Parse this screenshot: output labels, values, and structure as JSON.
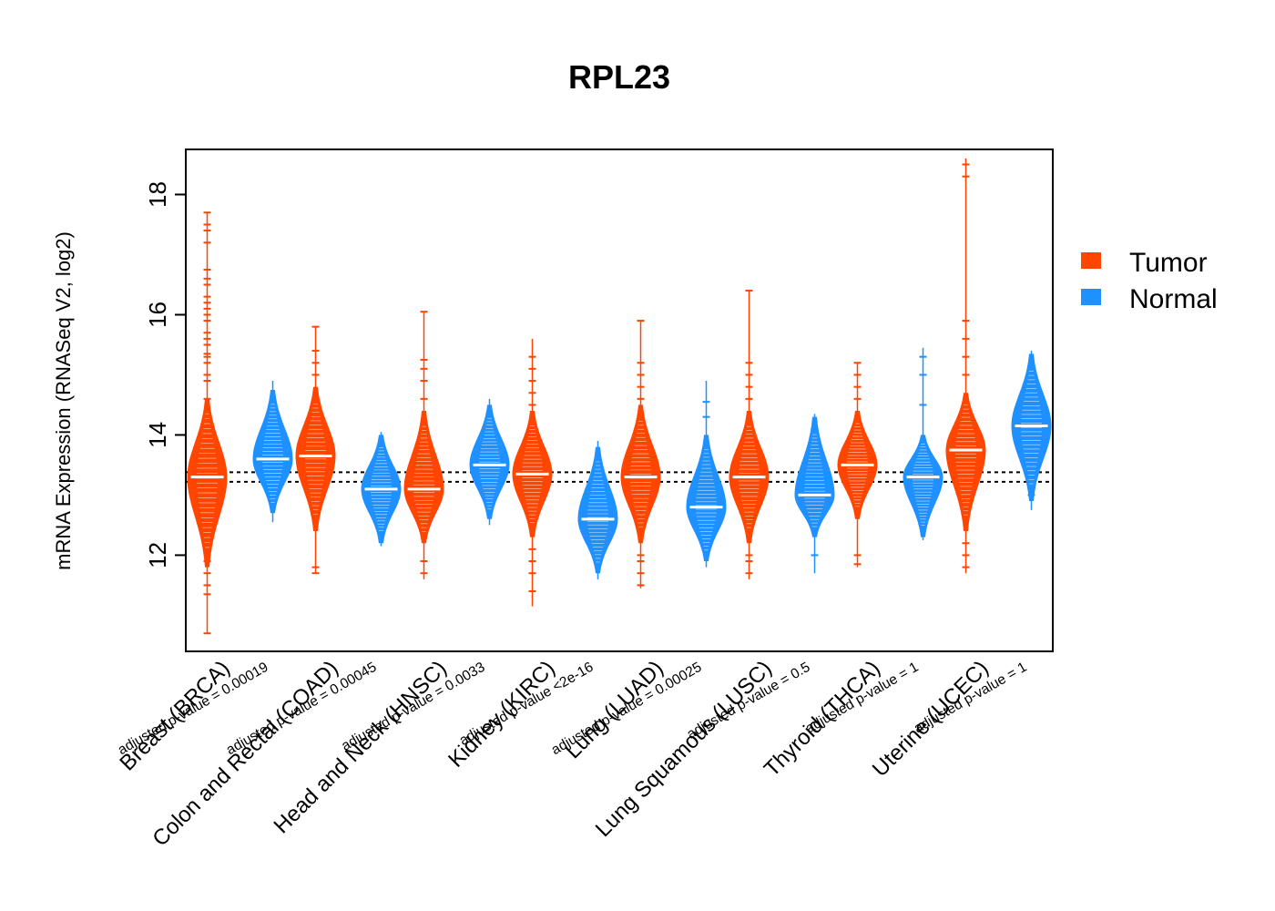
{
  "chart_data": {
    "type": "beanplot",
    "title": "RPL23",
    "xlabel": "",
    "ylabel": "mRNA Expression (RNASeq V2, log2)",
    "ylim": [
      10.4,
      18.75
    ],
    "yticks": [
      12,
      14,
      16,
      18
    ],
    "reference_lines": [
      13.22,
      13.38
    ],
    "legend": {
      "position": "right",
      "items": [
        {
          "name": "Tumor",
          "color": "#FF4500"
        },
        {
          "name": "Normal",
          "color": "#1E90FF"
        }
      ]
    },
    "categories": [
      {
        "label": "Breast (BRCA)",
        "pvalue": "adjusted p-value = 0.00019",
        "tumor": {
          "min": 10.7,
          "max": 17.7,
          "median": 13.3,
          "core_lo": 11.8,
          "core_hi": 14.6,
          "outliers": [
            10.7,
            11.35,
            11.5,
            11.7,
            11.9,
            14.6,
            14.9,
            15.0,
            15.2,
            15.3,
            15.35,
            15.5,
            15.6,
            15.7,
            15.9,
            16.0,
            16.1,
            16.2,
            16.3,
            16.5,
            16.6,
            16.75,
            17.2,
            17.4,
            17.5,
            17.7
          ]
        },
        "normal": {
          "min": 12.55,
          "max": 14.9,
          "median": 13.6,
          "core_lo": 12.7,
          "core_hi": 14.75,
          "outliers": []
        }
      },
      {
        "label": "Colon and Rectal (COAD)",
        "pvalue": "adjusted p-value = 0.00045",
        "tumor": {
          "min": 11.7,
          "max": 15.8,
          "median": 13.65,
          "core_lo": 12.4,
          "core_hi": 14.8,
          "outliers": [
            11.7,
            11.8,
            15.0,
            15.2,
            15.4,
            15.8
          ]
        },
        "normal": {
          "min": 12.15,
          "max": 14.05,
          "median": 13.1,
          "core_lo": 12.2,
          "core_hi": 14.0,
          "outliers": []
        }
      },
      {
        "label": "Head and Neck (HNSC)",
        "pvalue": "adjusted p-value = 0.0033",
        "tumor": {
          "min": 11.6,
          "max": 16.05,
          "median": 13.1,
          "core_lo": 12.2,
          "core_hi": 14.4,
          "outliers": [
            11.7,
            11.9,
            14.6,
            14.9,
            15.1,
            15.25,
            16.05
          ]
        },
        "normal": {
          "min": 12.5,
          "max": 14.6,
          "median": 13.5,
          "core_lo": 12.6,
          "core_hi": 14.5,
          "outliers": []
        }
      },
      {
        "label": "Kidney (KIRC)",
        "pvalue": "adjusted p-value <2e-16",
        "tumor": {
          "min": 11.15,
          "max": 15.6,
          "median": 13.35,
          "core_lo": 12.3,
          "core_hi": 14.4,
          "outliers": [
            11.4,
            11.7,
            11.9,
            12.1,
            14.5,
            14.7,
            14.9,
            15.1,
            15.3
          ]
        },
        "normal": {
          "min": 11.6,
          "max": 13.9,
          "median": 12.6,
          "core_lo": 11.7,
          "core_hi": 13.8,
          "outliers": []
        }
      },
      {
        "label": "Lung (LUAD)",
        "pvalue": "adjusted p-value = 0.00025",
        "tumor": {
          "min": 11.45,
          "max": 15.9,
          "median": 13.3,
          "core_lo": 12.2,
          "core_hi": 14.5,
          "outliers": [
            11.5,
            11.7,
            11.9,
            12.0,
            14.6,
            14.8,
            15.0,
            15.2,
            15.9
          ]
        },
        "normal": {
          "min": 11.8,
          "max": 14.9,
          "median": 12.8,
          "core_lo": 11.9,
          "core_hi": 14.0,
          "outliers": [
            14.3,
            14.55
          ]
        }
      },
      {
        "label": "Lung Squamous (LUSC)",
        "pvalue": "adjusted p-value = 0.5",
        "tumor": {
          "min": 11.6,
          "max": 16.4,
          "median": 13.3,
          "core_lo": 12.2,
          "core_hi": 14.4,
          "outliers": [
            11.7,
            11.9,
            12.0,
            14.6,
            14.8,
            15.0,
            15.2,
            16.4
          ]
        },
        "normal": {
          "min": 11.7,
          "max": 14.35,
          "median": 13.0,
          "core_lo": 12.3,
          "core_hi": 14.3,
          "outliers": [
            12.0
          ]
        }
      },
      {
        "label": "Thyroid (THCA)",
        "pvalue": "adjusted p-value = 1",
        "tumor": {
          "min": 11.8,
          "max": 15.2,
          "median": 13.5,
          "core_lo": 12.6,
          "core_hi": 14.4,
          "outliers": [
            11.85,
            12.0,
            14.6,
            14.8,
            15.0,
            15.2
          ]
        },
        "normal": {
          "min": 12.25,
          "max": 15.45,
          "median": 13.3,
          "core_lo": 12.3,
          "core_hi": 14.0,
          "outliers": [
            14.5,
            15.0,
            15.3
          ]
        }
      },
      {
        "label": "Uterine (UCEC)",
        "pvalue": "adjusted p-value = 1",
        "tumor": {
          "min": 11.7,
          "max": 18.6,
          "median": 13.75,
          "core_lo": 12.4,
          "core_hi": 14.7,
          "outliers": [
            11.8,
            12.0,
            12.2,
            15.0,
            15.3,
            15.6,
            15.9,
            18.3,
            18.5
          ]
        },
        "normal": {
          "min": 12.75,
          "max": 15.4,
          "median": 14.15,
          "core_lo": 12.9,
          "core_hi": 15.35,
          "outliers": [
            13.0
          ]
        }
      }
    ]
  }
}
